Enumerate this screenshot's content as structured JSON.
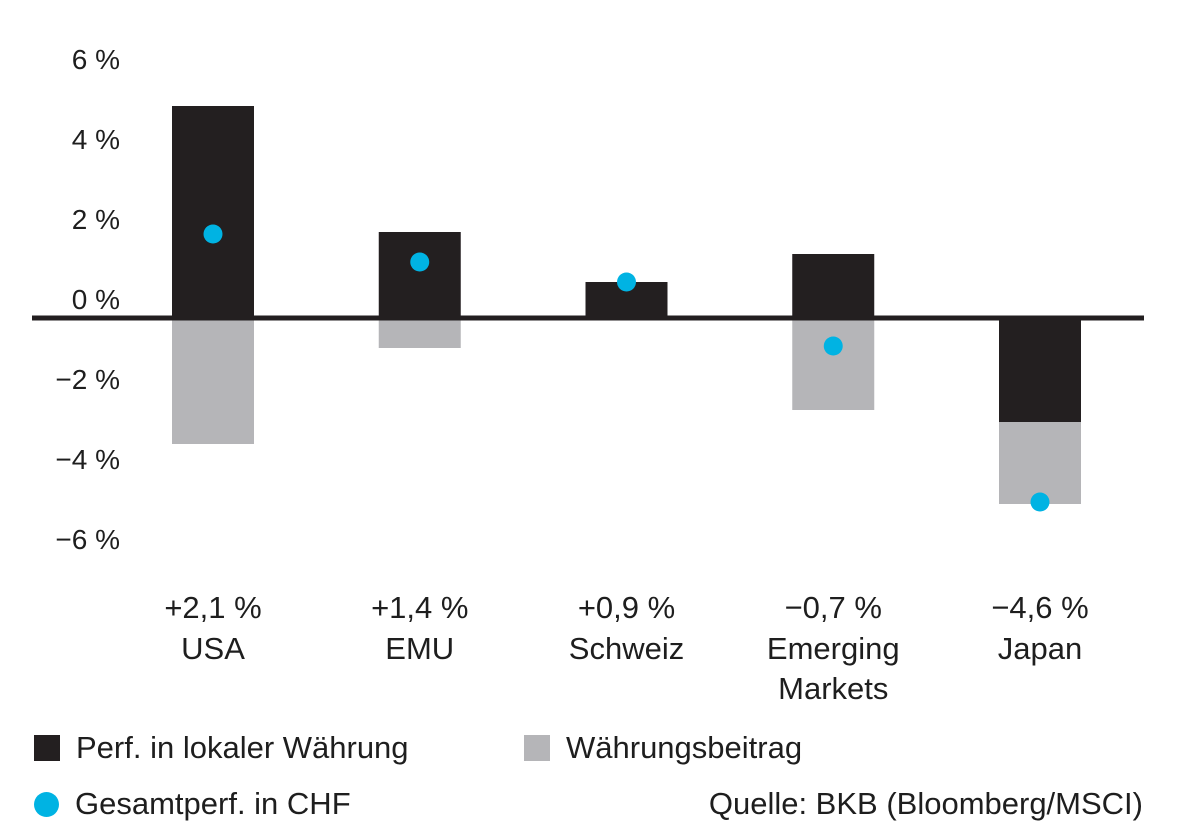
{
  "chart_data": {
    "type": "bar",
    "stacked": true,
    "categories": [
      {
        "total": "+2,1 %",
        "name": [
          "USA"
        ]
      },
      {
        "total": "+1,4 %",
        "name": [
          "EMU"
        ]
      },
      {
        "total": "+0,9 %",
        "name": [
          "Schweiz"
        ]
      },
      {
        "total": "−0,7 %",
        "name": [
          "Emerging",
          "Markets"
        ]
      },
      {
        "total": "−4,6 %",
        "name": [
          "Japan"
        ]
      }
    ],
    "series": [
      {
        "name": "Perf. in lokaler Währung",
        "type": "bar",
        "color": "#231f20",
        "values": [
          5.3,
          2.15,
          0.9,
          1.6,
          -2.6
        ]
      },
      {
        "name": "Währungsbeitrag",
        "type": "bar",
        "color": "#b5b5b8",
        "values": [
          -3.15,
          -0.75,
          -0.05,
          -2.3,
          -2.05
        ]
      },
      {
        "name": "Gesamtperf. in CHF",
        "type": "dot",
        "color": "#00b3e3",
        "values": [
          2.1,
          1.4,
          0.9,
          -0.7,
          -4.6
        ]
      }
    ],
    "yticks": [
      "6 %",
      "4 %",
      "2 %",
      "0 %",
      "−2 %",
      "−4 %",
      "−6 %"
    ],
    "ytick_values": [
      6,
      4,
      2,
      0,
      -2,
      -4,
      -6
    ],
    "ylim": [
      -6,
      6
    ],
    "grid": false,
    "legend_position": "bottom",
    "source": "Quelle: BKB (Bloomberg/MSCI)"
  }
}
